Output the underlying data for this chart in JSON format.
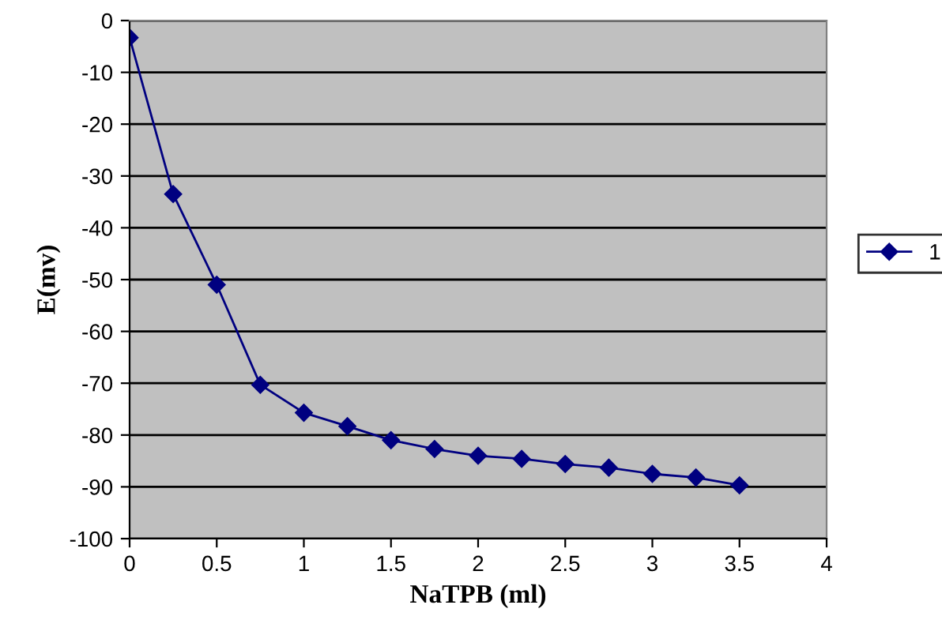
{
  "chart_data": {
    "type": "line",
    "xlabel": "NaTPB (ml)",
    "ylabel": "E(mv)",
    "x": [
      0,
      0.25,
      0.5,
      0.75,
      1,
      1.25,
      1.5,
      1.75,
      2,
      2.25,
      2.5,
      2.75,
      3,
      3.25,
      3.5
    ],
    "series": [
      {
        "name": "1",
        "color": "#000080",
        "values": [
          -3.3,
          -33.5,
          -51,
          -70.3,
          -75.7,
          -78.3,
          -81,
          -82.7,
          -84,
          -84.6,
          -85.6,
          -86.3,
          -87.5,
          -88.2,
          -89.7
        ]
      }
    ],
    "xlim": [
      0,
      4
    ],
    "xticks": [
      0,
      0.5,
      1,
      1.5,
      2,
      2.5,
      3,
      3.5,
      4
    ],
    "ylim": [
      -100,
      0
    ],
    "yticks": [
      -100,
      -90,
      -80,
      -70,
      -60,
      -50,
      -40,
      -30,
      -20,
      -10,
      0
    ],
    "grid": "y",
    "legend": "right",
    "marker": "diamond",
    "line_style": "solid"
  }
}
